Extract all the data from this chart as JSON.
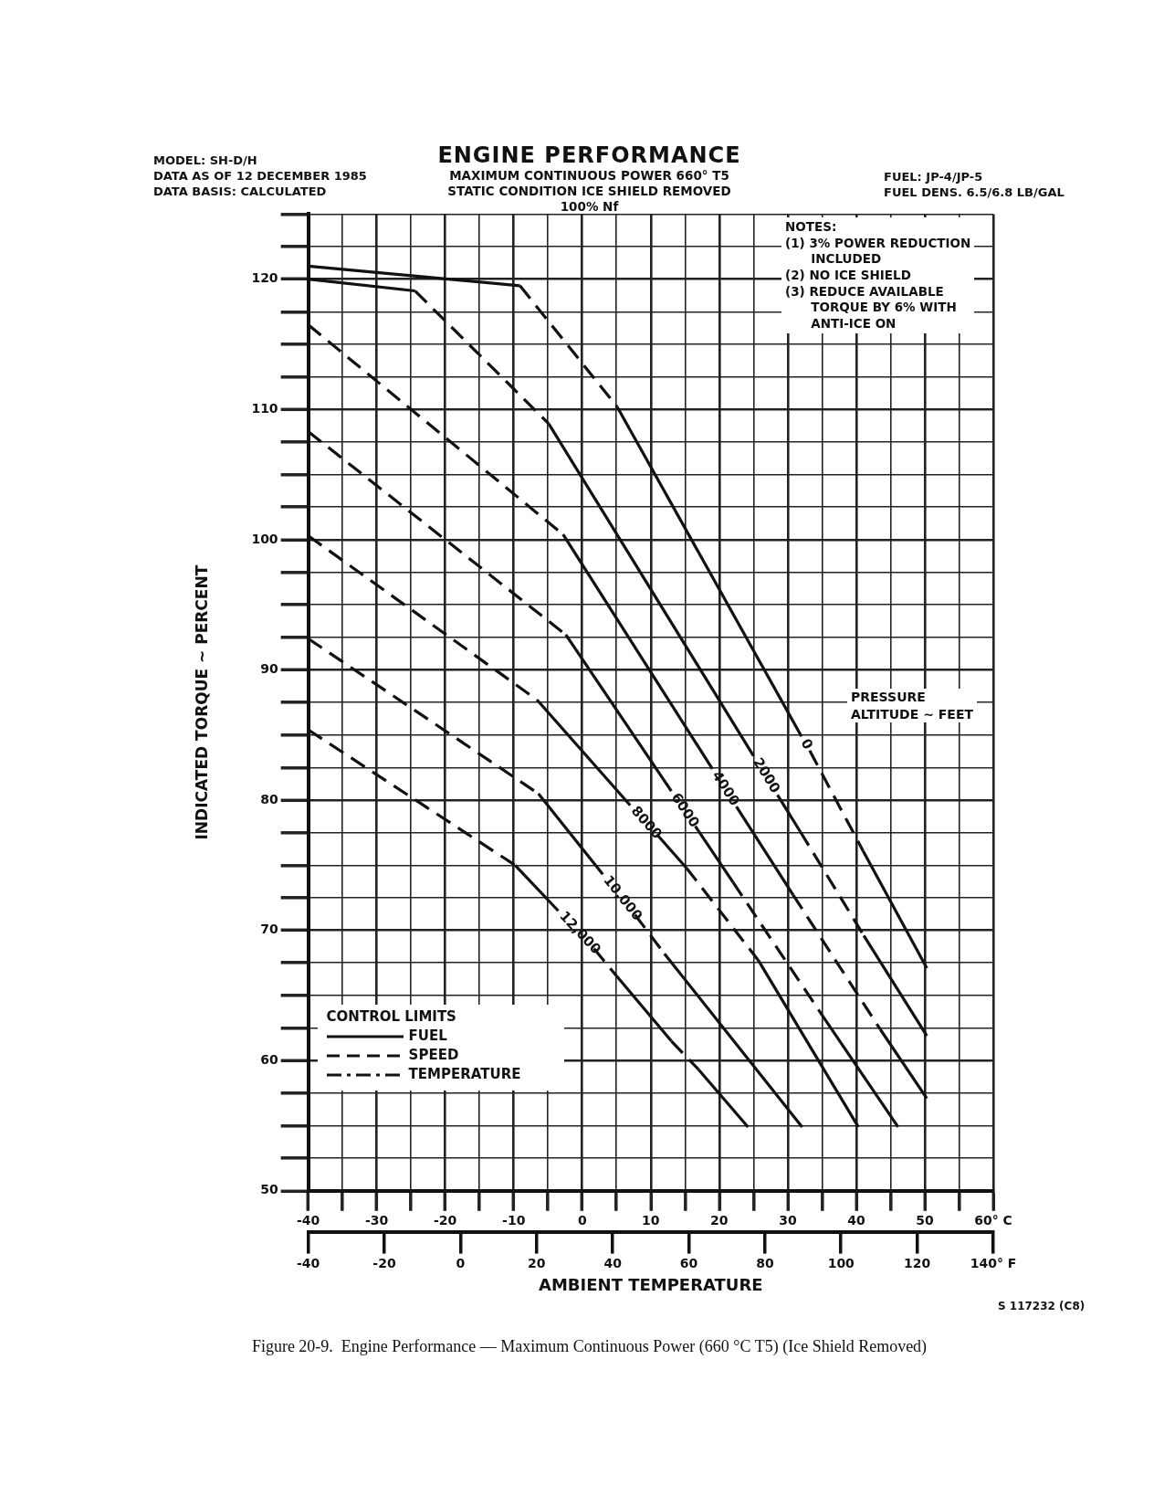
{
  "chart_data": {
    "type": "line",
    "title": "ENGINE PERFORMANCE",
    "subtitle": "MAXIMUM CONTINUOUS POWER 660° T5\nSTATIC CONDITION ICE SHIELD REMOVED\n100% Nf",
    "xlabel": "AMBIENT TEMPERATURE",
    "ylabel": "INDICATED TORQUE ~ PERCENT",
    "grid": true,
    "marker": "none",
    "xlim": [
      -40,
      60
    ],
    "ylim": [
      50,
      125
    ],
    "x2lim": [
      -40,
      140
    ],
    "xticks": [
      -40,
      {
        "value": -35,
        "label": null
      },
      -30,
      {
        "value": -25,
        "label": null
      },
      -20,
      {
        "value": -15,
        "label": null
      },
      -10,
      {
        "value": -5,
        "label": null
      },
      0,
      {
        "value": 5,
        "label": null
      },
      10,
      {
        "value": 15,
        "label": null
      },
      20,
      {
        "value": 25,
        "label": null
      },
      30,
      {
        "value": 35,
        "label": null
      },
      40,
      {
        "value": 45,
        "label": null
      },
      50,
      {
        "value": 55,
        "label": null
      },
      {
        "value": 60,
        "label": "60° C"
      }
    ],
    "x2ticks": [
      -40,
      -20,
      0,
      20,
      40,
      60,
      80,
      100,
      120,
      {
        "value": 140,
        "label": "140° F"
      }
    ],
    "yticks": [
      50,
      {
        "value": 52.5,
        "label": null
      },
      {
        "value": 55,
        "label": null
      },
      {
        "value": 57.5,
        "label": null
      },
      60,
      {
        "value": 62.5,
        "label": null
      },
      {
        "value": 65,
        "label": null
      },
      {
        "value": 67.5,
        "label": null
      },
      70,
      {
        "value": 72.5,
        "label": null
      },
      {
        "value": 75,
        "label": null
      },
      {
        "value": 77.5,
        "label": null
      },
      80,
      {
        "value": 82.5,
        "label": null
      },
      {
        "value": 85,
        "label": null
      },
      {
        "value": 87.5,
        "label": null
      },
      90,
      {
        "value": 92.5,
        "label": null
      },
      {
        "value": 95,
        "label": null
      },
      {
        "value": 97.5,
        "label": null
      },
      100,
      {
        "value": 102.5,
        "label": null
      },
      {
        "value": 105,
        "label": null
      },
      {
        "value": 107.5,
        "label": null
      },
      110,
      {
        "value": 112.5,
        "label": null
      },
      {
        "value": 115,
        "label": null
      },
      {
        "value": 117.5,
        "label": null
      },
      120,
      {
        "value": 122.5,
        "label": null
      },
      {
        "value": 125,
        "label": null
      }
    ],
    "series": [
      {
        "color": "#111111",
        "line_style": "solid",
        "x": [
          -40,
          -9.1
        ],
        "values": [
          121,
          119.5
        ]
      },
      {
        "color": "#111111",
        "line_style": "dashed",
        "x": [
          -9.1,
          5.1
        ],
        "values": [
          119.5,
          110.2
        ]
      },
      {
        "name": "0",
        "color": "#111111",
        "line_style": "solid",
        "x": [
          5.1,
          32
        ],
        "values": [
          110.2,
          84.9
        ]
      },
      {
        "color": "#111111",
        "line_style": "dashed",
        "x": [
          33.2,
          41
        ],
        "values": [
          83.8,
          76.1
        ]
      },
      {
        "color": "#111111",
        "line_style": "solid",
        "x": [
          41,
          50.3
        ],
        "values": [
          76.1,
          67.1
        ]
      },
      {
        "color": "#111111",
        "line_style": "solid",
        "x": [
          -40,
          -24.4
        ],
        "values": [
          120,
          119.1
        ]
      },
      {
        "color": "#111111",
        "line_style": "dashed",
        "x": [
          -24.4,
          -4.9
        ],
        "values": [
          119.1,
          108.9
        ]
      },
      {
        "name": "2000",
        "color": "#111111",
        "line_style": "solid",
        "x": [
          -4.9,
          25
        ],
        "values": [
          108.9,
          83.4
        ]
      },
      {
        "color": "#111111",
        "line_style": "solid",
        "x": [
          28.5,
          31.8
        ],
        "values": [
          80.4,
          77.6
        ]
      },
      {
        "color": "#111111",
        "line_style": "dashed",
        "x": [
          31.8,
          41.1
        ],
        "values": [
          77.6,
          69.6
        ]
      },
      {
        "color": "#111111",
        "line_style": "solid",
        "x": [
          41.1,
          50.3
        ],
        "values": [
          69.6,
          61.9
        ]
      },
      {
        "color": "#111111",
        "line_style": "dashed",
        "x": [
          -40,
          -2.8
        ],
        "values": [
          116.5,
          100.4
        ]
      },
      {
        "name": "4000",
        "color": "#111111",
        "line_style": "solid",
        "x": [
          -2.8,
          19
        ],
        "values": [
          100.4,
          82.4
        ]
      },
      {
        "color": "#111111",
        "line_style": "solid",
        "x": [
          22.5,
          30.8
        ],
        "values": [
          79.5,
          72.7
        ]
      },
      {
        "color": "#111111",
        "line_style": "dashed",
        "x": [
          30.8,
          43.5
        ],
        "values": [
          72.7,
          62.4
        ]
      },
      {
        "color": "#111111",
        "line_style": "solid",
        "x": [
          43.5,
          50.3
        ],
        "values": [
          62.4,
          57.1
        ]
      },
      {
        "color": "#111111",
        "line_style": "dashed",
        "x": [
          -40,
          -2.4
        ],
        "values": [
          108.3,
          92.7
        ]
      },
      {
        "name": "6000",
        "color": "#111111",
        "line_style": "solid",
        "x": [
          -2.4,
          13
        ],
        "values": [
          92.7,
          80.7
        ]
      },
      {
        "color": "#111111",
        "line_style": "solid",
        "x": [
          16.5,
          22
        ],
        "values": [
          78,
          73.7
        ]
      },
      {
        "color": "#111111",
        "line_style": "dashed",
        "x": [
          22,
          35
        ],
        "values": [
          73.7,
          63.5
        ]
      },
      {
        "color": "#111111",
        "line_style": "solid",
        "x": [
          35,
          46.1
        ],
        "values": [
          63.5,
          54.9
        ]
      },
      {
        "color": "#111111",
        "line_style": "dashed",
        "x": [
          -40,
          -6.6
        ],
        "values": [
          100.3,
          87.7
        ]
      },
      {
        "name": "8000",
        "color": "#111111",
        "line_style": "solid",
        "x": [
          -6.6,
          7
        ],
        "values": [
          87.7,
          79.6
        ]
      },
      {
        "color": "#111111",
        "line_style": "solid",
        "x": [
          11,
          15.2
        ],
        "values": [
          77.3,
          74.8
        ]
      },
      {
        "color": "#111111",
        "line_style": "dashed",
        "x": [
          15.2,
          25.7
        ],
        "values": [
          74.8,
          67.7
        ]
      },
      {
        "color": "#111111",
        "line_style": "solid",
        "x": [
          25.7,
          40.3
        ],
        "values": [
          67.7,
          54.9
        ]
      },
      {
        "color": "#111111",
        "line_style": "dashed",
        "x": [
          -40,
          -6.4
        ],
        "values": [
          92.4,
          80.5
        ]
      },
      {
        "name": "10,000",
        "color": "#111111",
        "line_style": "solid",
        "x": [
          -6.4,
          3
        ],
        "values": [
          80.5,
          74.3
        ]
      },
      {
        "color": "#111111",
        "line_style": "dashed",
        "x": [
          7.7,
          12
        ],
        "values": [
          71.2,
          68.2
        ]
      },
      {
        "color": "#111111",
        "line_style": "solid",
        "x": [
          12,
          32.1
        ],
        "values": [
          68.2,
          54.9
        ]
      },
      {
        "color": "#111111",
        "line_style": "dashed",
        "x": [
          -40,
          -9.8
        ],
        "values": [
          85.4,
          75
        ]
      },
      {
        "name": "12,000",
        "color": "#111111",
        "line_style": "solid",
        "x": [
          -9.8,
          -3.5
        ],
        "values": [
          75,
          71.5
        ]
      },
      {
        "color": "#111111",
        "line_style": "dashed",
        "x": [
          1.7,
          5
        ],
        "values": [
          68.6,
          66.5
        ]
      },
      {
        "color": "#111111",
        "line_style": "solid",
        "x": [
          5,
          13
        ],
        "values": [
          66.5,
          61.5
        ]
      },
      {
        "color": "#111111",
        "line_style": "dashed",
        "x": [
          13,
          17
        ],
        "values": [
          61.5,
          59.3
        ]
      },
      {
        "color": "#111111",
        "line_style": "solid",
        "x": [
          17,
          24.2
        ],
        "values": [
          59.3,
          54.9
        ]
      }
    ],
    "annotations": [
      "MODEL: SH-D/H\nDATA AS OF 12 DECEMBER 1985\nDATA BASIS: CALCULATED",
      "FUEL: JP-4/JP-5\nFUEL DENS. 6.5/6.8 LB/GAL",
      "NOTES:\n(1) 3% POWER REDUCTION\n      INCLUDED\n(2) NO ICE SHIELD\n(3) REDUCE AVAILABLE\n      TORQUE BY 6% WITH\n      ANTI-ICE ON",
      "PRESSURE\nALTITUDE ~ FEET",
      "S 117232 (C8)",
      "Figure 20-9.  Engine Performance — Maximum Continuous Power (660 °C T5) (Ice Shield Removed)",
      "CONTROL LIMITS",
      "FUEL",
      "SPEED",
      "TEMPERATURE"
    ]
  }
}
